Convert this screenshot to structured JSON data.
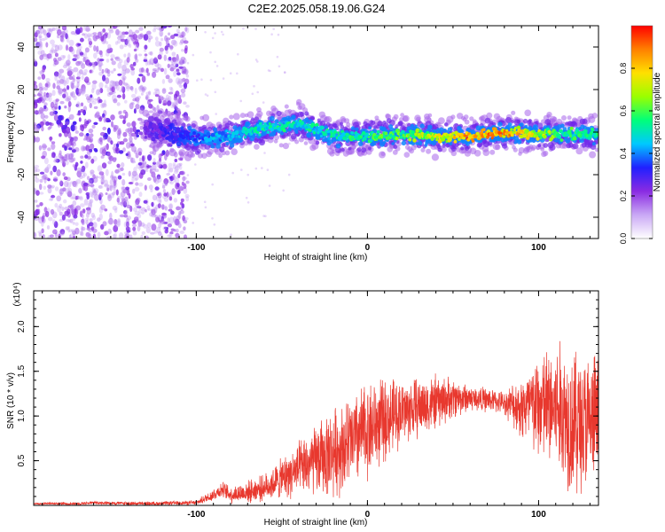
{
  "title": "C2E2.2025.058.19.06.G24",
  "colors": {
    "snr_line": "#e8382e",
    "background": "#ffffff",
    "axis": "#000000"
  },
  "chart_data": [
    {
      "type": "heatmap",
      "xlabel": "Height of straight line (km)",
      "ylabel": "Frequency (Hz)",
      "xlim": [
        -195,
        135
      ],
      "ylim": [
        -50,
        50
      ],
      "x_ticks": [
        "-100",
        "0",
        "100"
      ],
      "y_ticks": [
        "-40",
        "-20",
        "0",
        "20",
        "40"
      ],
      "colorbar": {
        "label": "Normalized spectral amplitude",
        "range": [
          0,
          1
        ],
        "ticks": [
          "0.0",
          "0.2",
          "0.4",
          "0.6",
          "0.8"
        ],
        "colors": [
          "#ffffff",
          "#c9a8f5",
          "#8a2be2",
          "#2020ff",
          "#00c8ff",
          "#00ff7a",
          "#9aff00",
          "#ffe000",
          "#ff8000",
          "#ff0000"
        ]
      },
      "ridge": {
        "center_freq_hz": [
          [
            -130,
            2
          ],
          [
            -110,
            -1
          ],
          [
            -100,
            -3
          ],
          [
            -80,
            -2
          ],
          [
            -60,
            2
          ],
          [
            -40,
            4
          ],
          [
            -20,
            -2
          ],
          [
            0,
            -2
          ],
          [
            20,
            -1
          ],
          [
            40,
            -2
          ],
          [
            60,
            -2
          ],
          [
            80,
            0
          ],
          [
            100,
            -1
          ],
          [
            120,
            -1
          ],
          [
            135,
            -1
          ]
        ],
        "peak_amplitude": [
          [
            -130,
            0.25
          ],
          [
            -110,
            0.35
          ],
          [
            -90,
            0.45
          ],
          [
            -60,
            0.55
          ],
          [
            -40,
            0.55
          ],
          [
            -20,
            0.55
          ],
          [
            0,
            0.6
          ],
          [
            20,
            0.65
          ],
          [
            40,
            0.75
          ],
          [
            60,
            0.95
          ],
          [
            80,
            0.9
          ],
          [
            100,
            0.75
          ],
          [
            120,
            0.6
          ],
          [
            135,
            0.55
          ]
        ]
      },
      "noise_region_km": [
        -195,
        -105
      ]
    },
    {
      "type": "line",
      "xlabel": "Height of straight line (km)",
      "ylabel": "SNR (10 * v/v)",
      "y_multiplier": "(x10⁴)",
      "xlim": [
        -195,
        135
      ],
      "ylim": [
        0,
        2.4
      ],
      "x_ticks": [
        "-100",
        "0",
        "100"
      ],
      "y_ticks": [
        "0.5",
        "1.0",
        "1.5",
        "2.0"
      ],
      "series": [
        {
          "envelope_center": [
            [
              -195,
              0.02
            ],
            [
              -170,
              0.02
            ],
            [
              -160,
              0.03
            ],
            [
              -130,
              0.02
            ],
            [
              -100,
              0.03
            ],
            [
              -90,
              0.12
            ],
            [
              -85,
              0.18
            ],
            [
              -80,
              0.12
            ],
            [
              -70,
              0.15
            ],
            [
              -60,
              0.2
            ],
            [
              -50,
              0.3
            ],
            [
              -40,
              0.4
            ],
            [
              -30,
              0.5
            ],
            [
              -20,
              0.6
            ],
            [
              -10,
              0.7
            ],
            [
              0,
              0.85
            ],
            [
              10,
              0.95
            ],
            [
              20,
              1.05
            ],
            [
              30,
              1.1
            ],
            [
              40,
              1.15
            ],
            [
              50,
              1.2
            ],
            [
              60,
              1.2
            ],
            [
              70,
              1.18
            ],
            [
              80,
              1.15
            ],
            [
              90,
              1.1
            ],
            [
              100,
              1.1
            ],
            [
              110,
              1.1
            ],
            [
              120,
              0.95
            ],
            [
              130,
              0.9
            ],
            [
              135,
              1.0
            ]
          ],
          "envelope_spread": [
            [
              -195,
              0.01
            ],
            [
              -100,
              0.02
            ],
            [
              -90,
              0.06
            ],
            [
              -60,
              0.12
            ],
            [
              -40,
              0.25
            ],
            [
              -20,
              0.4
            ],
            [
              0,
              0.45
            ],
            [
              20,
              0.3
            ],
            [
              40,
              0.25
            ],
            [
              60,
              0.12
            ],
            [
              80,
              0.1
            ],
            [
              90,
              0.3
            ],
            [
              100,
              0.5
            ],
            [
              110,
              0.6
            ],
            [
              120,
              0.7
            ],
            [
              135,
              0.6
            ]
          ]
        }
      ]
    }
  ]
}
